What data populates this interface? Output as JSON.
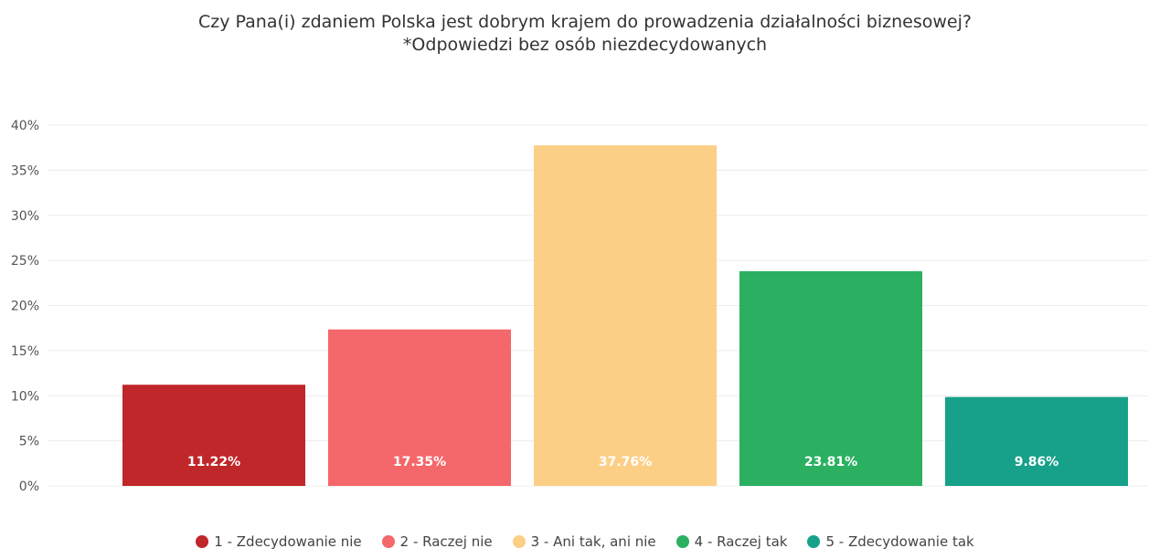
{
  "chart_data": {
    "type": "bar",
    "title": "Czy Pana(i) zdaniem Polska jest dobrym krajem do prowadzenia działalności biznesowej?",
    "subtitle": "*Odpowiedzi bez osób niezdecydowanych",
    "categories": [
      "1 - Zdecydowanie nie",
      "2 - Raczej nie",
      "3 - Ani tak, ani nie",
      "4 - Raczej tak",
      "5 - Zdecydowanie tak"
    ],
    "values": [
      11.22,
      17.35,
      37.76,
      23.81,
      9.86
    ],
    "data_labels": [
      "11.22%",
      "17.35%",
      "37.76%",
      "23.81%",
      "9.86%"
    ],
    "colors": [
      "#c0272a",
      "#f4676a",
      "#fccf87",
      "#2bb062",
      "#17a08a"
    ],
    "ylim": [
      0,
      40
    ],
    "yticks": [
      "0%",
      "5%",
      "10%",
      "15%",
      "20%",
      "25%",
      "30%",
      "35%",
      "40%"
    ],
    "grid": true,
    "legend_position": "bottom"
  }
}
